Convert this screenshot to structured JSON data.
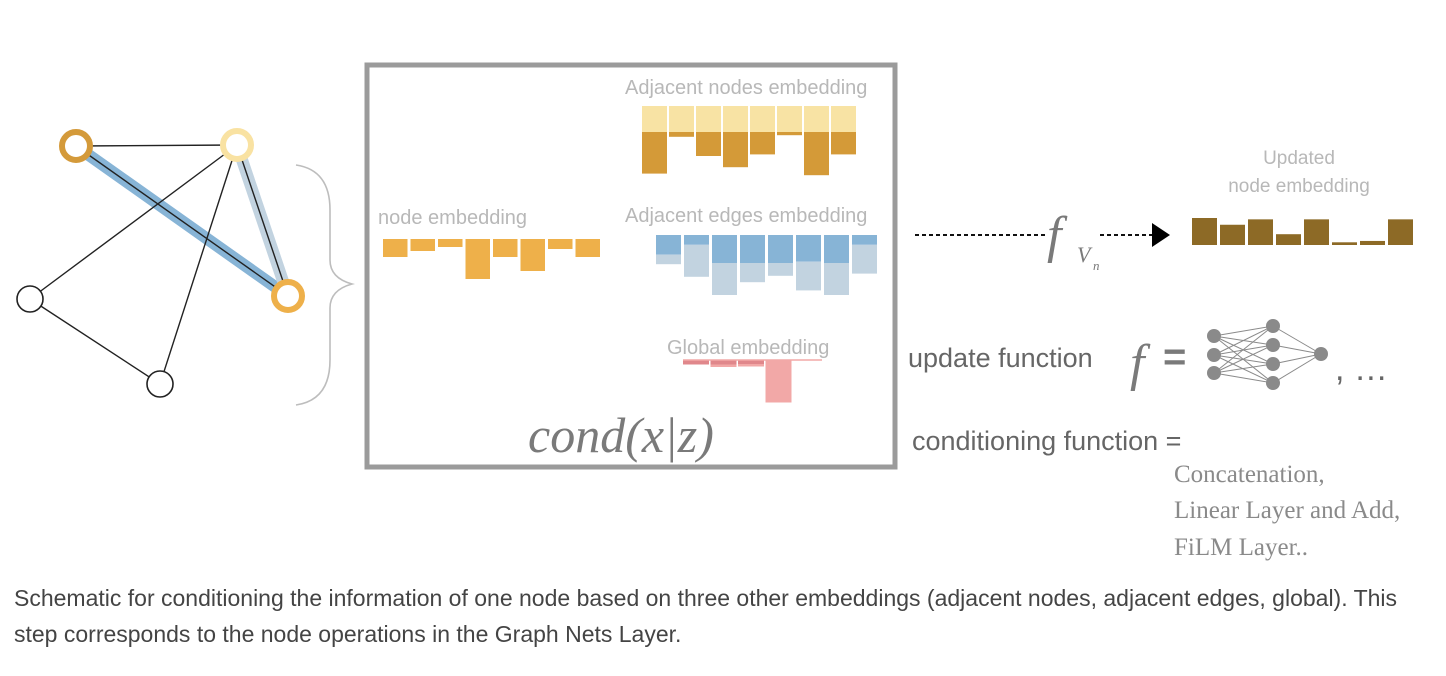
{
  "labels": {
    "adjacent_nodes": "Adjacent nodes embedding",
    "node_embedding": "node embedding",
    "adjacent_edges": "Adjacent edges embedding",
    "global_embedding": "Global embedding",
    "cond": "cond(x|z)",
    "updated_line1": "Updated",
    "updated_line2": "node embedding",
    "f_symbol": "f",
    "f_subscript": "V",
    "f_subscript_sub": "n",
    "update_function": "update function",
    "equals": "=",
    "ellipsis": ", …",
    "conditioning_function": "conditioning function =",
    "options": [
      "Concatenation,",
      "Linear Layer and Add,",
      "FiLM Layer.."
    ]
  },
  "caption": "Schematic for conditioning the information of one node based on three other embeddings (adjacent nodes, adjacent edges, global). This step corresponds to the node operations in the Graph Nets Layer.",
  "colors": {
    "frame": "#9b9b9b",
    "label_gray": "#b8b8b8",
    "node_orange": "#eeb04a",
    "node_dark_orange": "#d49a3a",
    "node_light_yellow": "#f9e2a2",
    "edge_blue": "#87b4d6",
    "edge_light_blue": "#c2d3e0",
    "global_red": "#e0878b",
    "global_pink": "#f2a8a7",
    "adj_yellow": "#f8e3a4",
    "adj_brown": "#d49a38",
    "updated_brown": "#8d6a26",
    "nn_gray": "#8a8a8a",
    "text_gray": "#7a7a7a"
  },
  "embeddings": {
    "node": [
      -0.45,
      -0.3,
      -0.2,
      -1.0,
      -0.45,
      -0.8,
      -0.25,
      -0.45
    ],
    "adjacent_nodes_light": [
      1.0,
      1.0,
      1.0,
      1.0,
      1.0,
      1.0,
      1.0,
      1.0
    ],
    "adjacent_nodes_dark": [
      1.3,
      0.15,
      0.75,
      1.1,
      0.7,
      0.1,
      1.35,
      0.7
    ],
    "adjacent_edges_blue": [
      0.7,
      0.35,
      1.0,
      1.0,
      1.0,
      0.95,
      1.0,
      0.35
    ],
    "adjacent_edges_light": [
      0.3,
      1.0,
      1.0,
      0.6,
      0.4,
      0.9,
      1.0,
      0.9
    ],
    "global_red": [
      0.45,
      0.45,
      0.4,
      0.0
    ],
    "global_pink": [
      0.0,
      0.1,
      0.1,
      1.7
    ],
    "updated": [
      1.0,
      0.75,
      0.95,
      0.4,
      0.95,
      0.1,
      0.15,
      0.95
    ]
  }
}
